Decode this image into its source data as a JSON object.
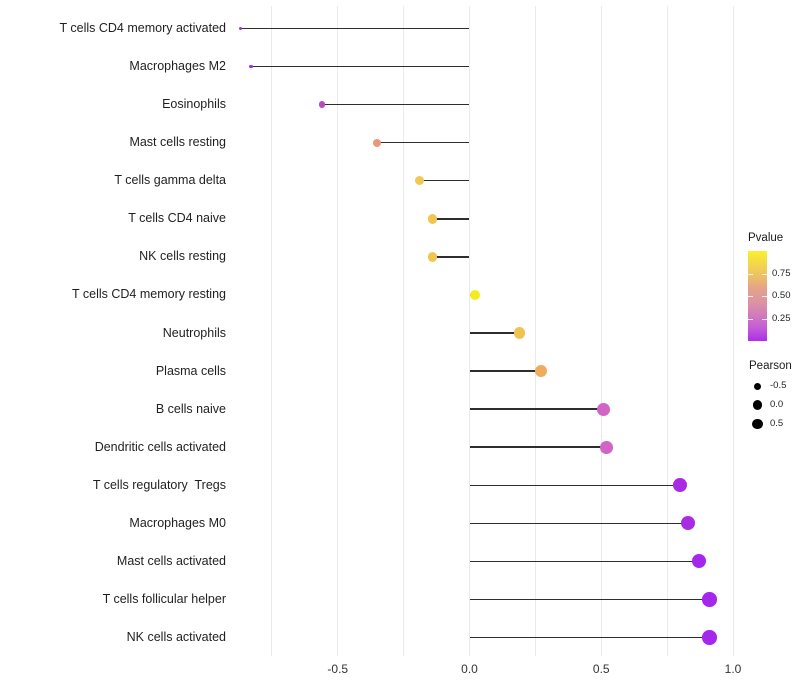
{
  "chart_data": {
    "type": "lollipop",
    "title": "",
    "xlabel": "",
    "ylabel": "",
    "xlim": [
      -0.96,
      1.02
    ],
    "x_tick_labels": [
      "-0.5",
      "0.0",
      "0.5",
      "1.0"
    ],
    "x_tick_values": [
      -0.5,
      0.0,
      0.5,
      1.0
    ],
    "x_gridline_values": [
      -0.75,
      -0.5,
      -0.25,
      0.0,
      0.25,
      0.5,
      0.75,
      1.0
    ],
    "grid": "vertical-only",
    "stem_color": "#2e2e2e",
    "background": "#ffffff",
    "categories": [
      "T cells CD4 memory activated",
      "Macrophages M2",
      "Eosinophils",
      "Mast cells resting",
      "T cells gamma delta",
      "T cells CD4 naive",
      "NK cells resting",
      "T cells CD4 memory resting",
      "Neutrophils",
      "Plasma cells",
      "B cells naive",
      "Dendritic cells activated",
      "T cells regulatory  Tregs",
      "Macrophages M0",
      "Mast cells activated",
      "T cells follicular helper",
      "NK cells activated"
    ],
    "points": [
      {
        "label": "T cells CD4 memory activated",
        "pearson": -0.87,
        "color": "#A72BE9"
      },
      {
        "label": "Macrophages M2",
        "pearson": -0.83,
        "color": "#A72BE9"
      },
      {
        "label": "Eosinophils",
        "pearson": -0.56,
        "color": "#BB49C0"
      },
      {
        "label": "Mast cells resting",
        "pearson": -0.35,
        "color": "#E9997B"
      },
      {
        "label": "T cells gamma delta",
        "pearson": -0.19,
        "color": "#F1C852"
      },
      {
        "label": "T cells CD4 naive",
        "pearson": -0.14,
        "color": "#F0C64F"
      },
      {
        "label": "NK cells resting",
        "pearson": -0.14,
        "color": "#F0C64F"
      },
      {
        "label": "T cells CD4 memory resting",
        "pearson": 0.02,
        "color": "#F5EC1F"
      },
      {
        "label": "Neutrophils",
        "pearson": 0.19,
        "color": "#F0C351"
      },
      {
        "label": "Plasma cells",
        "pearson": 0.27,
        "color": "#EFAC5E"
      },
      {
        "label": "B cells naive",
        "pearson": 0.51,
        "color": "#D264C6"
      },
      {
        "label": "Dendritic cells activated",
        "pearson": 0.52,
        "color": "#D264C6"
      },
      {
        "label": "T cells regulatory  Tregs",
        "pearson": 0.8,
        "color": "#AA2BE4"
      },
      {
        "label": "Macrophages M0",
        "pearson": 0.83,
        "color": "#AA2BE4"
      },
      {
        "label": "Mast cells activated",
        "pearson": 0.87,
        "color": "#A527EC"
      },
      {
        "label": "T cells follicular helper",
        "pearson": 0.91,
        "color": "#A527EC"
      },
      {
        "label": "NK cells activated",
        "pearson": 0.91,
        "color": "#A527EC"
      }
    ],
    "legend": {
      "pvalue": {
        "title": "Pvalue",
        "tick_labels": [
          "0.75",
          "0.50",
          "0.25"
        ],
        "tick_values": [
          0.75,
          0.5,
          0.25
        ],
        "range": [
          0,
          1
        ],
        "gradient_top_to_bottom": [
          "#F9F02C",
          "#F3D74B",
          "#EDBE68",
          "#E3A18D",
          "#DC93A2",
          "#D07BBC",
          "#C35BD7",
          "#AC2EEC"
        ]
      },
      "pearson": {
        "title": "Pearson",
        "entries": [
          {
            "label": "-0.5",
            "value": -0.5,
            "diameter": 7.0
          },
          {
            "label": "0.0",
            "value": 0.0,
            "diameter": 9.2
          },
          {
            "label": "0.5",
            "value": 0.5,
            "diameter": 10.5
          }
        ],
        "dot_color": "#000000"
      }
    }
  }
}
